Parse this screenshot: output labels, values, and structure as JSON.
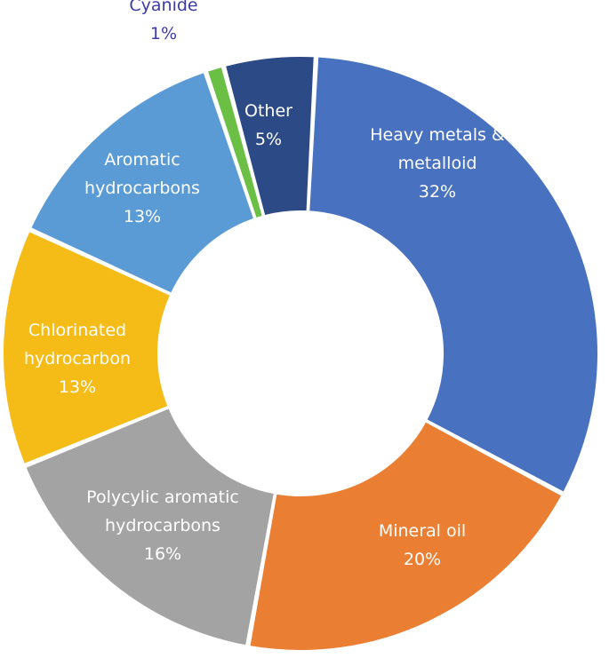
{
  "chart_data": {
    "type": "pie",
    "variant": "donut",
    "title": "",
    "slices": [
      {
        "label_lines": [
          "Heavy  metals &",
          "metalloid"
        ],
        "pct_label": "32%",
        "value": 32,
        "color": "#4872BF",
        "text_color": "#ffffff"
      },
      {
        "label_lines": [
          "Mineral oil"
        ],
        "pct_label": "20%",
        "value": 20,
        "color": "#EA7E32",
        "text_color": "#ffffff"
      },
      {
        "label_lines": [
          "Polycylic aromatic",
          "hydrocarbons"
        ],
        "pct_label": "16%",
        "value": 16,
        "color": "#A3A3A3",
        "text_color": "#ffffff"
      },
      {
        "label_lines": [
          "Chlorinated",
          "hydrocarbon"
        ],
        "pct_label": "13%",
        "value": 13,
        "color": "#F5BB16",
        "text_color": "#ffffff"
      },
      {
        "label_lines": [
          "Aromatic",
          "hydrocarbons"
        ],
        "pct_label": "13%",
        "value": 13,
        "color": "#5B9BD5",
        "text_color": "#ffffff"
      },
      {
        "label_lines": [
          "Cyanide"
        ],
        "pct_label": "1%",
        "value": 1,
        "color": "#6BBF45",
        "text_color": "#3B3BA8",
        "label_outside": true
      },
      {
        "label_lines": [
          "Other"
        ],
        "pct_label": "5%",
        "value": 5,
        "color": "#2C4B86",
        "text_color": "#ffffff"
      }
    ]
  }
}
